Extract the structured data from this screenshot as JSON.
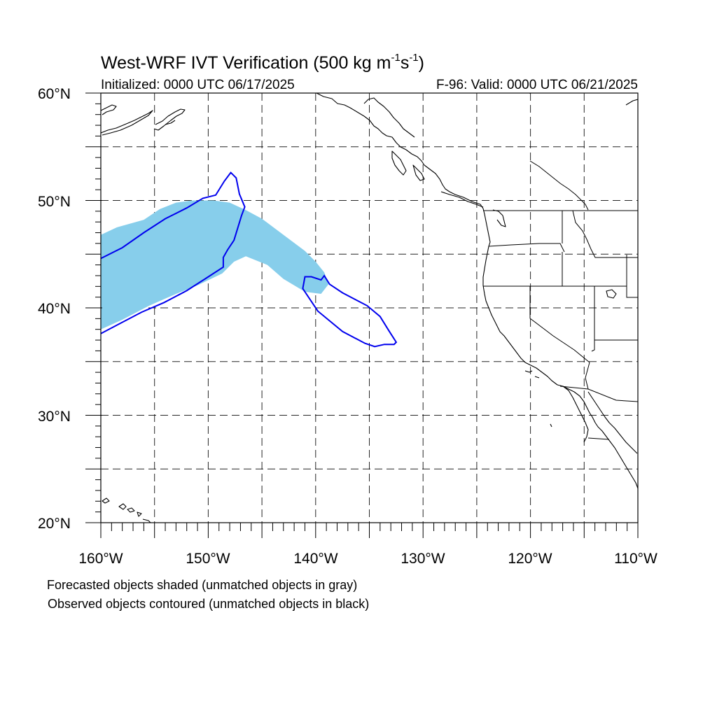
{
  "title": {
    "main": "West-WRF IVT Verification (500 kg m",
    "unit_exp1": "-1",
    "unit_mid": "s",
    "unit_exp2": "-1",
    "unit_close": ")"
  },
  "subtitle_left": "Initialized: 0000 UTC 06/17/2025",
  "subtitle_right": "F-96: Valid: 0000 UTC 06/21/2025",
  "lat_labels": [
    {
      "value": 60,
      "label": "60°N"
    },
    {
      "value": 50,
      "label": "50°N"
    },
    {
      "value": 40,
      "label": "40°N"
    },
    {
      "value": 30,
      "label": "30°N"
    },
    {
      "value": 20,
      "label": "20°N"
    }
  ],
  "lon_labels": [
    {
      "value": -160,
      "label": "160°W"
    },
    {
      "value": -150,
      "label": "150°W"
    },
    {
      "value": -140,
      "label": "140°W"
    },
    {
      "value": -130,
      "label": "130°W"
    },
    {
      "value": -120,
      "label": "120°W"
    },
    {
      "value": -110,
      "label": "110°W"
    }
  ],
  "notes": [
    "Forecasted objects shaded (unmatched objects in gray)",
    "Observed objects contoured (unmatched objects in black)"
  ],
  "colors": {
    "forecast_fill": "#87ceeb",
    "observed_contour": "#0000ee",
    "coast": "#000000"
  },
  "map": {
    "lon_range": [
      -160,
      -110
    ],
    "lat_range": [
      20,
      60
    ],
    "grid_lons": [
      -155,
      -150,
      -145,
      -140,
      -135,
      -130,
      -125,
      -120,
      -115
    ],
    "grid_lats": [
      25,
      30,
      35,
      40,
      45,
      50,
      55
    ]
  },
  "forecast_object": [
    [
      -160,
      46.8
    ],
    [
      -158.5,
      47.5
    ],
    [
      -156,
      48.2
    ],
    [
      -154.5,
      49.2
    ],
    [
      -153,
      49.8
    ],
    [
      -151.5,
      50
    ],
    [
      -149.5,
      50
    ],
    [
      -148,
      49.8
    ],
    [
      -146.5,
      49.1
    ],
    [
      -145,
      48.3
    ],
    [
      -143,
      46.8
    ],
    [
      -141,
      45.3
    ],
    [
      -140,
      44.3
    ],
    [
      -139.2,
      43.3
    ],
    [
      -138.8,
      42.2
    ],
    [
      -139.5,
      41.3
    ],
    [
      -141,
      41.5
    ],
    [
      -143,
      42.7
    ],
    [
      -144.5,
      44
    ],
    [
      -146.5,
      44.8
    ],
    [
      -147.6,
      44.3
    ],
    [
      -148.7,
      43.2
    ],
    [
      -151,
      42.1
    ],
    [
      -153,
      41.3
    ],
    [
      -155.5,
      40.2
    ],
    [
      -158,
      38.9
    ],
    [
      -160,
      38.0
    ]
  ],
  "observed_object_main": [
    [
      -160,
      44.6
    ],
    [
      -158,
      45.6
    ],
    [
      -156,
      47
    ],
    [
      -154,
      48.3
    ],
    [
      -152,
      49.3
    ],
    [
      -150.5,
      50.2
    ],
    [
      -149.3,
      50.5
    ],
    [
      -148.5,
      51.8
    ],
    [
      -147.9,
      52.6
    ],
    [
      -147.4,
      52.1
    ],
    [
      -147.1,
      50.6
    ],
    [
      -146.6,
      49.4
    ],
    [
      -146.9,
      48.6
    ],
    [
      -147.6,
      46.3
    ],
    [
      -148.2,
      45.4
    ],
    [
      -148.6,
      44.7
    ],
    [
      -148.6,
      43.8
    ],
    [
      -150.3,
      42.7
    ],
    [
      -152,
      41.6
    ],
    [
      -154.1,
      40.5
    ],
    [
      -156.2,
      39.6
    ],
    [
      -158.3,
      38.5
    ],
    [
      -160,
      37.6
    ]
  ],
  "observed_object_east": [
    [
      -141.0,
      42.9
    ],
    [
      -140.4,
      42.9
    ],
    [
      -139.5,
      42.6
    ],
    [
      -139.2,
      43.0
    ],
    [
      -138.7,
      42.2
    ],
    [
      -137.5,
      41.4
    ],
    [
      -135.2,
      40.2
    ],
    [
      -134,
      39.2
    ],
    [
      -133.2,
      37.9
    ],
    [
      -132.5,
      36.8
    ],
    [
      -132.7,
      36.6
    ],
    [
      -133.6,
      36.6
    ],
    [
      -134.5,
      36.4
    ],
    [
      -135.4,
      36.7
    ],
    [
      -137.5,
      37.8
    ],
    [
      -139.8,
      39.7
    ],
    [
      -141.2,
      41.8
    ]
  ]
}
